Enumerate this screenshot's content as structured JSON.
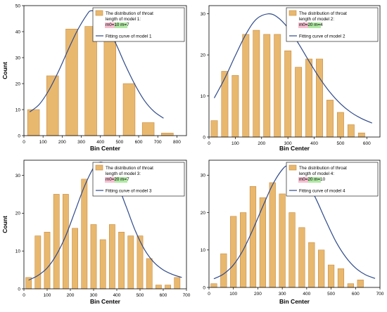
{
  "colors": {
    "bar_fill": "#E8B86F",
    "bar_stroke": "#C98A3C",
    "curve": "#2E4A8C",
    "axis": "#000000",
    "legend_border": "#000000",
    "highlight_pink": "#F2AFC4",
    "highlight_green": "#8EE07E"
  },
  "chart_data": [
    {
      "type": "bar",
      "title": "",
      "xlabel": "Bin Center",
      "ylabel": "Count",
      "xlim": [
        0,
        850
      ],
      "ylim": [
        0,
        50
      ],
      "xticks": [
        0,
        100,
        200,
        300,
        400,
        500,
        600,
        700,
        800
      ],
      "yticks": [
        0,
        10,
        20,
        30,
        40,
        50
      ],
      "bin_width": 100,
      "bin_centers": [
        50,
        150,
        250,
        350,
        450,
        550,
        650,
        750
      ],
      "values": [
        10,
        23,
        41,
        42,
        41,
        20,
        5,
        1
      ],
      "legend_position": "top-right",
      "legend": {
        "bar_label_lines": [
          "The distribution of throat",
          "length of model 1:",
          "m0=10 m=7"
        ],
        "curve_label": "Fitting curve of model 1"
      },
      "fit_curve": {
        "x": [
          30,
          80,
          130,
          180,
          230,
          280,
          330,
          350,
          380,
          430,
          480,
          530,
          580,
          630,
          680,
          730
        ],
        "y": [
          9.1,
          12.0,
          17.4,
          24.6,
          32.8,
          40.5,
          46.6,
          48.0,
          47.2,
          42.6,
          35.5,
          27.2,
          19.7,
          13.5,
          9.3,
          6.7
        ]
      }
    },
    {
      "type": "bar",
      "title": "",
      "xlabel": "Bin Center",
      "ylabel": "",
      "xlim": [
        0,
        650
      ],
      "ylim": [
        0,
        32
      ],
      "xticks": [
        0,
        100,
        200,
        300,
        400,
        500,
        600
      ],
      "yticks": [
        0,
        10,
        20,
        30
      ],
      "bin_width": 40,
      "bin_centers": [
        20,
        60,
        100,
        140,
        180,
        220,
        260,
        300,
        340,
        380,
        420,
        460,
        500,
        540,
        580,
        620
      ],
      "values": [
        4,
        16,
        15,
        25,
        26,
        25,
        25,
        21,
        17,
        19,
        19,
        9,
        6,
        3,
        1,
        0
      ],
      "legend_position": "top-right",
      "legend": {
        "bar_label_lines": [
          "The distribution of throat",
          "length of model 2:",
          "m0=20 m=4"
        ],
        "curve_label": "Fitting curve of model 2"
      },
      "fit_curve": {
        "x": [
          20,
          60,
          100,
          140,
          180,
          225,
          260,
          300,
          340,
          380,
          420,
          460,
          500,
          540,
          580,
          620
        ],
        "y": [
          9.5,
          14.3,
          19.8,
          25.0,
          28.7,
          30.0,
          29.2,
          26.6,
          22.8,
          18.5,
          14.4,
          10.9,
          8.1,
          6.0,
          4.5,
          3.4
        ]
      }
    },
    {
      "type": "bar",
      "title": "",
      "xlabel": "Bin Center",
      "ylabel": "Count",
      "xlim": [
        0,
        700
      ],
      "ylim": [
        0,
        34
      ],
      "xticks": [
        0,
        100,
        200,
        300,
        400,
        500,
        600,
        700
      ],
      "yticks": [
        0,
        10,
        20,
        30
      ],
      "bin_width": 40,
      "bin_centers": [
        20,
        60,
        100,
        140,
        180,
        220,
        260,
        300,
        340,
        380,
        420,
        460,
        500,
        540,
        580,
        620,
        660
      ],
      "values": [
        3,
        14,
        15,
        25,
        25,
        16,
        29,
        17,
        13,
        17,
        15,
        14,
        14,
        8,
        1,
        1,
        3
      ],
      "legend_position": "top-right",
      "legend": {
        "bar_label_lines": [
          "The distribution of throat",
          "length of model 3:",
          "m0=20 m=7"
        ],
        "curve_label": "Fitting curve of model 3"
      },
      "fit_curve": {
        "x": [
          20,
          60,
          100,
          140,
          180,
          220,
          260,
          300,
          330,
          360,
          400,
          440,
          480,
          520,
          560,
          600,
          640,
          680
        ],
        "y": [
          2.3,
          3.5,
          5.5,
          9.0,
          14.0,
          20.5,
          27.0,
          32.0,
          33.5,
          32.3,
          28.0,
          21.8,
          15.3,
          10.3,
          7.0,
          5.0,
          3.8,
          3.0
        ]
      }
    },
    {
      "type": "bar",
      "title": "",
      "xlabel": "Bin Center",
      "ylabel": "",
      "xlim": [
        0,
        700
      ],
      "ylim": [
        0,
        34
      ],
      "xticks": [
        0,
        100,
        200,
        300,
        400,
        500,
        600,
        700
      ],
      "yticks": [
        0,
        10,
        20,
        30
      ],
      "bin_width": 40,
      "bin_centers": [
        20,
        60,
        100,
        140,
        180,
        220,
        260,
        300,
        340,
        380,
        420,
        460,
        500,
        540,
        580,
        620,
        660
      ],
      "values": [
        1,
        9,
        19,
        20,
        27,
        24,
        28,
        25,
        20,
        16,
        12,
        10,
        6,
        5,
        1,
        2,
        0
      ],
      "legend_position": "top-right",
      "legend": {
        "bar_label_lines": [
          "The distribution of throat",
          "length of model 4:",
          "m0=20 m=10"
        ],
        "curve_label": "Fitting curve of model 4"
      },
      "fit_curve": {
        "x": [
          20,
          60,
          100,
          140,
          180,
          220,
          260,
          300,
          325,
          360,
          400,
          440,
          480,
          520,
          560,
          600,
          640,
          680
        ],
        "y": [
          2.3,
          3.6,
          6.0,
          10.0,
          15.5,
          21.6,
          27.4,
          31.5,
          32.6,
          31.8,
          28.5,
          23.4,
          17.6,
          12.2,
          8.1,
          5.2,
          3.4,
          2.4
        ]
      }
    }
  ]
}
